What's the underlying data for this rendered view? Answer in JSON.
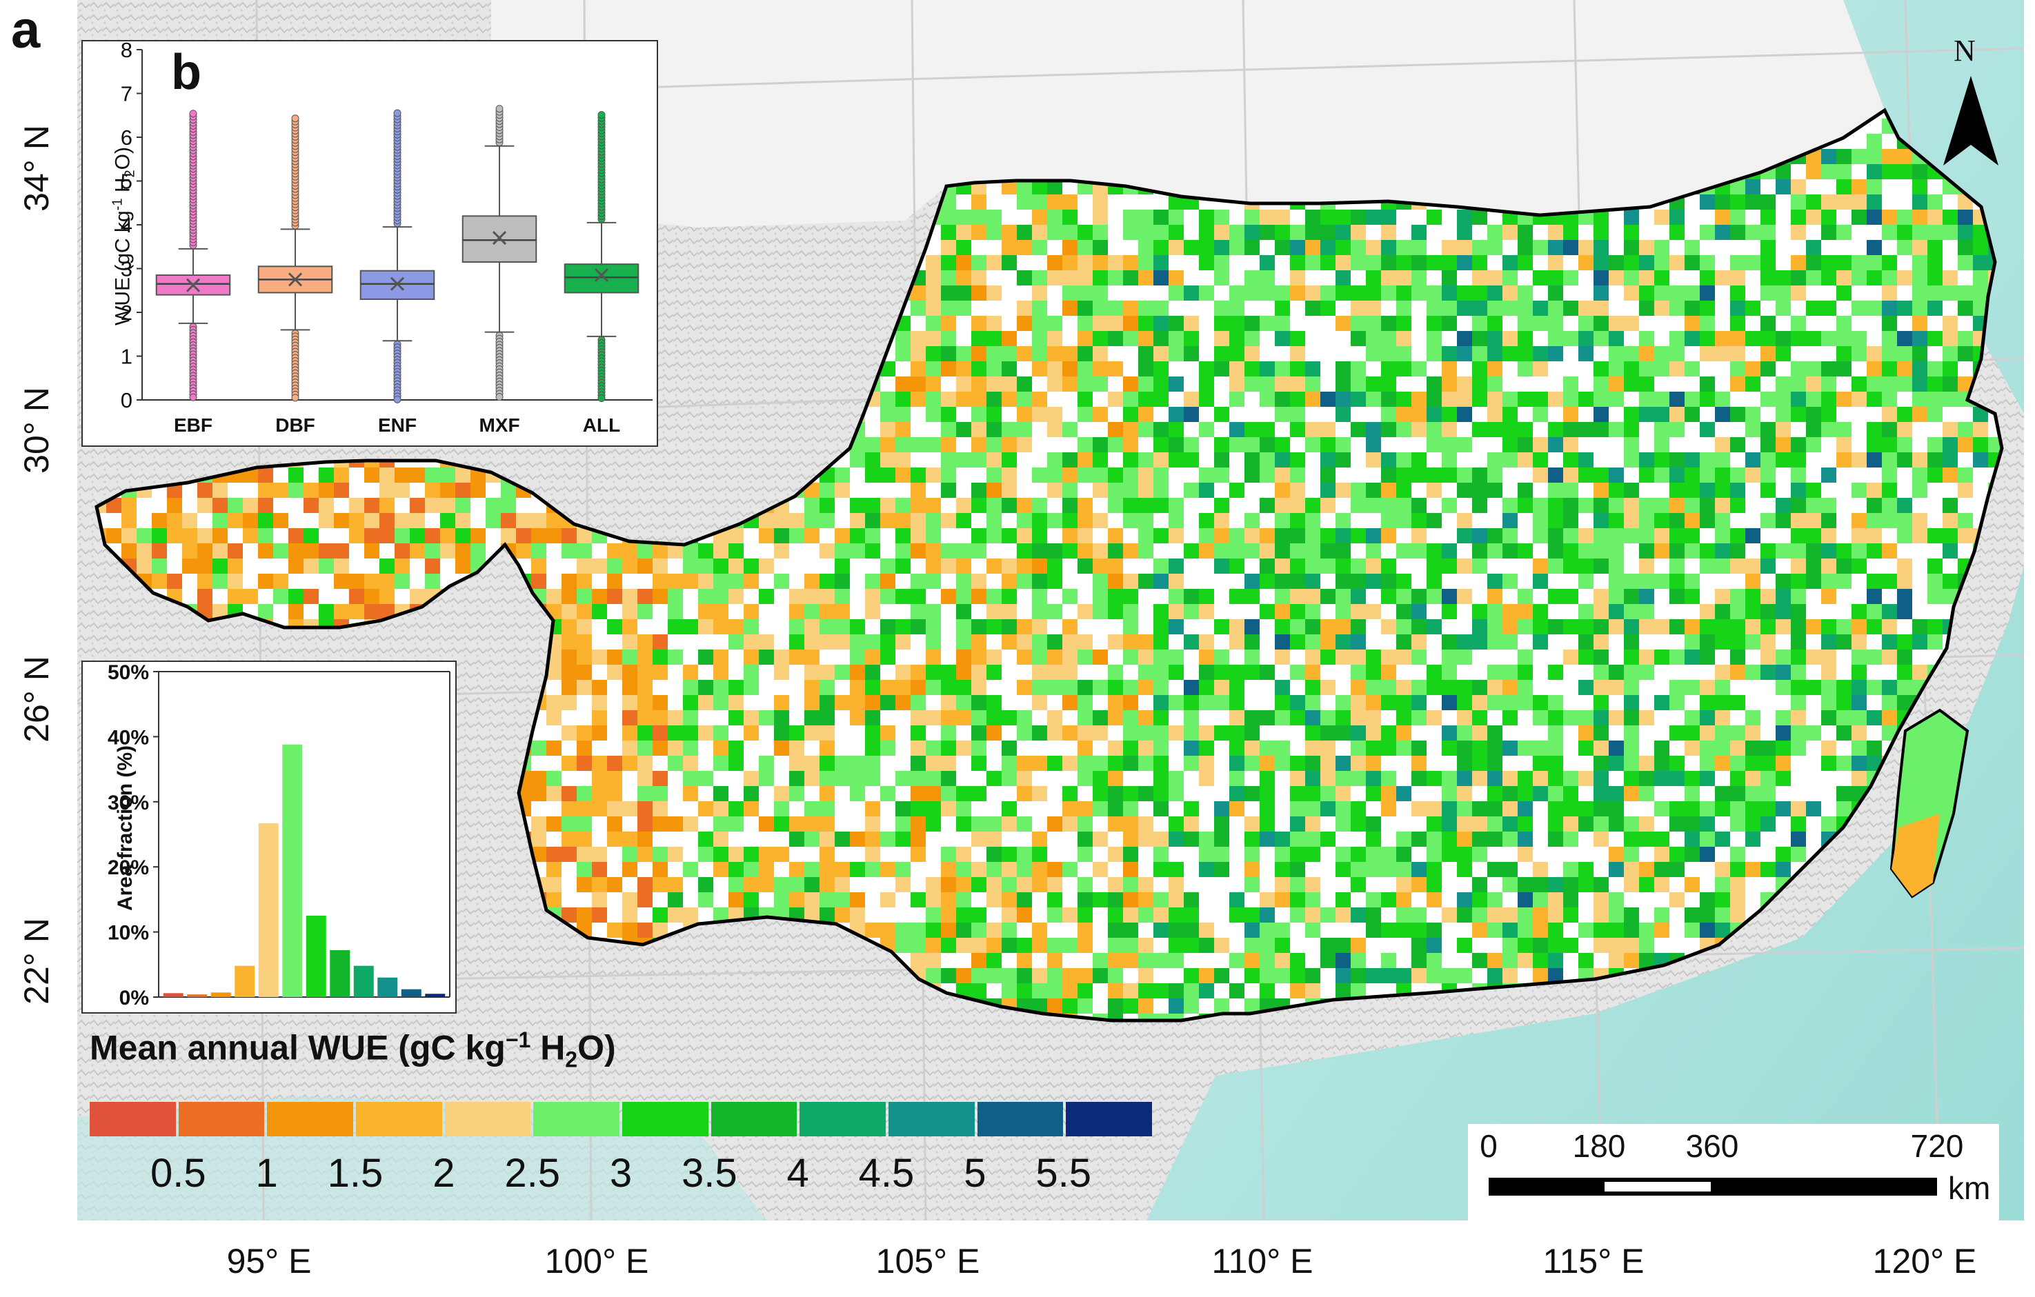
{
  "panel_a": {
    "letter": "a",
    "lat_labels": [
      "34° N",
      "30° N",
      "26° N",
      "22° N"
    ],
    "lon_labels": [
      "95° E",
      "100° E",
      "105° E",
      "110° E",
      "115° E",
      "120° E"
    ],
    "north_label": "N",
    "scalebar": {
      "ticks": [
        "0",
        "180",
        "360",
        "720"
      ],
      "unit": "km"
    },
    "colors": {
      "ocean": "#a8e2dd",
      "terrain": "#dcdcdc",
      "wue_classes": [
        "#e0533a",
        "#ec6e22",
        "#f5960a",
        "#fbb22c",
        "#fbd07c",
        "#6cf06a",
        "#18d418",
        "#13b52b",
        "#0ea867",
        "#13918d",
        "#0f5f86",
        "#0b2a7a"
      ]
    }
  },
  "panel_b": {
    "letter": "b",
    "ylabel": "WUE (gC kg",
    "ylabel_sup": "-1",
    "ylabel_tail": " H",
    "ylabel_sub": "2",
    "ylabel_end": "O)",
    "yticks": [
      "0",
      "1",
      "2",
      "3",
      "4",
      "5",
      "6",
      "7",
      "8"
    ],
    "chart_data": {
      "type": "box",
      "categories": [
        "EBF",
        "DBF",
        "ENF",
        "MXF",
        "ALL"
      ],
      "ylim": [
        0,
        8
      ],
      "boxes": [
        {
          "name": "EBF",
          "q1": 2.4,
          "median": 2.65,
          "q3": 2.85,
          "mean": 2.62,
          "whisker_low": 1.75,
          "whisker_high": 3.45,
          "max": 6.6,
          "min": 0.0,
          "color": "#f07ac8"
        },
        {
          "name": "DBF",
          "q1": 2.45,
          "median": 2.75,
          "q3": 3.05,
          "mean": 2.75,
          "whisker_low": 1.6,
          "whisker_high": 3.9,
          "max": 6.5,
          "min": 0.0,
          "color": "#f8ac80"
        },
        {
          "name": "ENF",
          "q1": 2.3,
          "median": 2.65,
          "q3": 2.95,
          "mean": 2.65,
          "whisker_low": 1.35,
          "whisker_high": 3.95,
          "max": 6.6,
          "min": 0.0,
          "color": "#8c9ae6"
        },
        {
          "name": "MXF",
          "q1": 3.15,
          "median": 3.65,
          "q3": 4.2,
          "mean": 3.7,
          "whisker_low": 1.55,
          "whisker_high": 5.8,
          "max": 6.7,
          "min": 0.0,
          "color": "#bdbdbd"
        },
        {
          "name": "ALL",
          "q1": 2.45,
          "median": 2.8,
          "q3": 3.1,
          "mean": 2.85,
          "whisker_low": 1.45,
          "whisker_high": 4.05,
          "max": 6.55,
          "min": 0.0,
          "color": "#18b04d"
        }
      ]
    }
  },
  "panel_hist": {
    "ylabel": "Area fraction (%)",
    "yticks": [
      "0%",
      "10%",
      "20%",
      "30%",
      "40%",
      "50%"
    ],
    "chart_data": {
      "type": "bar",
      "ylim": [
        0,
        50
      ],
      "values": [
        0.6,
        0.4,
        0.7,
        4.8,
        26.7,
        38.8,
        12.5,
        7.2,
        4.8,
        3.0,
        1.2,
        0.5
      ],
      "colors": [
        "#e0533a",
        "#ec6e22",
        "#f5960a",
        "#fbb22c",
        "#fbd07c",
        "#6cf06a",
        "#18d418",
        "#13b52b",
        "#0ea867",
        "#13918d",
        "#0f5f86",
        "#0b2a7a"
      ]
    }
  },
  "legend": {
    "title_pre": "Mean annual WUE (gC kg",
    "title_sup": "−1",
    "title_mid": " H",
    "title_sub": "2",
    "title_end": "O)",
    "labels": [
      "0.5",
      "1",
      "1.5",
      "2",
      "2.5",
      "3",
      "3.5",
      "4",
      "4.5",
      "5",
      "5.5"
    ]
  }
}
